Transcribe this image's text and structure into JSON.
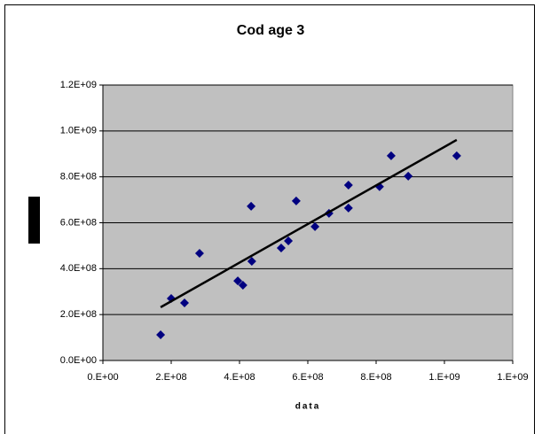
{
  "chart_data": {
    "type": "scatter",
    "title": "Cod age 3",
    "x_label": "data",
    "xlim": [
      0,
      1200000000
    ],
    "ylim": [
      0,
      1200000000
    ],
    "xticks": [
      {
        "value": 0,
        "label": "0.E+00"
      },
      {
        "value": 200000000,
        "label": "2.E+08"
      },
      {
        "value": 400000000,
        "label": "4.E+08"
      },
      {
        "value": 600000000,
        "label": "6.E+08"
      },
      {
        "value": 800000000,
        "label": "8.E+08"
      },
      {
        "value": 1000000000,
        "label": "1.E+09"
      },
      {
        "value": 1200000000,
        "label": "1.E+09"
      }
    ],
    "yticks": [
      {
        "value": 0,
        "label": "0.0E+00"
      },
      {
        "value": 200000000,
        "label": "2.0E+08"
      },
      {
        "value": 400000000,
        "label": "4.0E+08"
      },
      {
        "value": 600000000,
        "label": "6.0E+08"
      },
      {
        "value": 800000000,
        "label": "8.0E+08"
      },
      {
        "value": 1000000000,
        "label": "1.0E+09"
      },
      {
        "value": 1200000000,
        "label": "1.2E+09"
      }
    ],
    "grid": true,
    "background": "#c0c0c0",
    "series": [
      {
        "color": "#000080",
        "marker": "diamond",
        "x": [
          169000000,
          200000000,
          239000000,
          283000000,
          395000000,
          410000000,
          434000000,
          436000000,
          522000000,
          543000000,
          566000000,
          621000000,
          662000000,
          719000000,
          719000000,
          810000000,
          844000000,
          894000000,
          1036000000
        ],
        "values": [
          112000000,
          270000000,
          251000000,
          467000000,
          347000000,
          328000000,
          672000000,
          432000000,
          490000000,
          521000000,
          695000000,
          583000000,
          641000000,
          764000000,
          664000000,
          757000000,
          892000000,
          803000000,
          892000000
        ]
      }
    ],
    "trendline": {
      "color": "#000000",
      "x": [
        169000000,
        1036000000
      ],
      "values": [
        232000000,
        961000000
      ]
    }
  }
}
